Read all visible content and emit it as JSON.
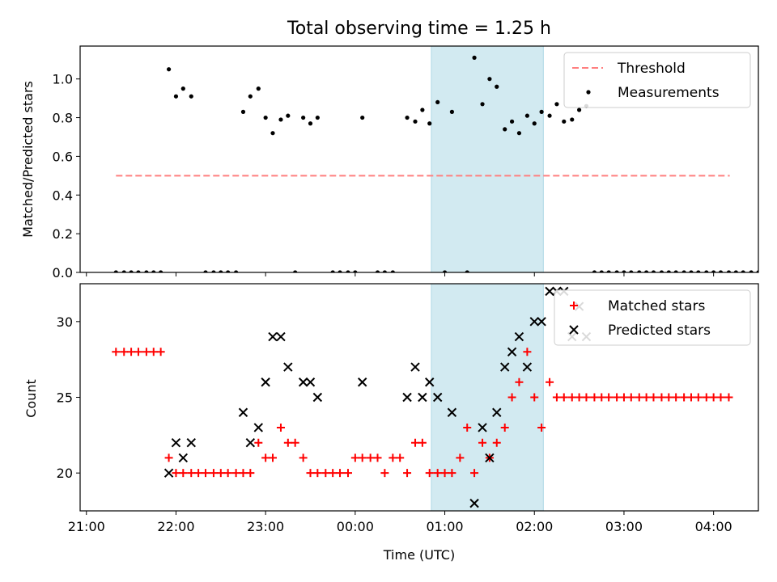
{
  "figure": {
    "title": "Total observing time = 1.25 h",
    "shade_color": "#add8e6"
  },
  "chart_data": [
    {
      "type": "scatter",
      "title": "Total observing time = 1.25 h",
      "xlabel": "",
      "ylabel": "Matched/Predicted stars",
      "xlim": [
        -0.07,
        7.5
      ],
      "ylim": [
        0,
        1.17
      ],
      "yticks": [
        0.0,
        0.2,
        0.4,
        0.6,
        0.8,
        1.0
      ],
      "ytick_labels": [
        "0.0",
        "0.2",
        "0.4",
        "0.6",
        "0.8",
        "1.0"
      ],
      "shaded_x": [
        3.85,
        5.1
      ],
      "legend": "upper right",
      "series": [
        {
          "name": "Threshold",
          "kind": "dashed-line",
          "color": "#ff7f7f",
          "x": [
            0.33,
            7.18
          ],
          "y": [
            0.5,
            0.5
          ]
        },
        {
          "name": "Measurements",
          "kind": "dots",
          "color": "#000000",
          "points": [
            [
              0.33,
              0
            ],
            [
              0.42,
              0
            ],
            [
              0.5,
              0
            ],
            [
              0.58,
              0
            ],
            [
              0.67,
              0
            ],
            [
              0.75,
              0
            ],
            [
              0.83,
              0
            ],
            [
              0.92,
              1.05
            ],
            [
              1.0,
              0.91
            ],
            [
              1.08,
              0.95
            ],
            [
              1.17,
              0.91
            ],
            [
              1.33,
              0
            ],
            [
              1.42,
              0
            ],
            [
              1.5,
              0
            ],
            [
              1.58,
              0
            ],
            [
              1.67,
              0
            ],
            [
              1.75,
              0.83
            ],
            [
              1.83,
              0.91
            ],
            [
              1.92,
              0.95
            ],
            [
              2.0,
              0.8
            ],
            [
              2.08,
              0.72
            ],
            [
              2.17,
              0.79
            ],
            [
              2.25,
              0.81
            ],
            [
              2.33,
              0
            ],
            [
              2.42,
              0.8
            ],
            [
              2.5,
              0.77
            ],
            [
              2.58,
              0.8
            ],
            [
              2.75,
              0
            ],
            [
              2.83,
              0
            ],
            [
              2.92,
              0
            ],
            [
              3.0,
              0
            ],
            [
              3.08,
              0.8
            ],
            [
              3.25,
              0
            ],
            [
              3.33,
              0
            ],
            [
              3.42,
              0
            ],
            [
              3.58,
              0.8
            ],
            [
              3.67,
              0.78
            ],
            [
              3.75,
              0.84
            ],
            [
              3.83,
              0.77
            ],
            [
              3.92,
              0.88
            ],
            [
              4.0,
              0
            ],
            [
              4.08,
              0.83
            ],
            [
              4.25,
              0
            ],
            [
              4.33,
              1.11
            ],
            [
              4.42,
              0.87
            ],
            [
              4.5,
              1.0
            ],
            [
              4.58,
              0.96
            ],
            [
              4.67,
              0.74
            ],
            [
              4.75,
              0.78
            ],
            [
              4.83,
              0.72
            ],
            [
              4.92,
              0.81
            ],
            [
              5.0,
              0.77
            ],
            [
              5.08,
              0.83
            ],
            [
              5.17,
              0.81
            ],
            [
              5.25,
              0.87
            ],
            [
              5.33,
              0.78
            ],
            [
              5.42,
              0.79
            ],
            [
              5.5,
              0.84
            ],
            [
              5.58,
              0.86
            ],
            [
              5.67,
              0
            ],
            [
              5.75,
              0
            ],
            [
              5.83,
              0
            ],
            [
              5.92,
              0
            ],
            [
              6.0,
              0
            ],
            [
              6.08,
              0
            ],
            [
              6.17,
              0
            ],
            [
              6.25,
              0
            ],
            [
              6.33,
              0
            ],
            [
              6.42,
              0
            ],
            [
              6.5,
              0
            ],
            [
              6.58,
              0
            ],
            [
              6.67,
              0
            ],
            [
              6.75,
              0
            ],
            [
              6.83,
              0
            ],
            [
              6.92,
              0
            ],
            [
              7.0,
              0
            ],
            [
              7.08,
              0
            ],
            [
              7.17,
              0
            ],
            [
              7.25,
              0
            ],
            [
              7.33,
              0
            ],
            [
              7.42,
              0
            ],
            [
              7.5,
              0
            ],
            [
              7.58,
              0
            ],
            [
              7.67,
              0
            ]
          ]
        }
      ]
    },
    {
      "type": "scatter",
      "xlabel": "Time (UTC)",
      "ylabel": "Count",
      "xlim": [
        -0.07,
        7.5
      ],
      "ylim": [
        17.5,
        32.5
      ],
      "yticks": [
        20,
        25,
        30
      ],
      "ytick_labels": [
        "20",
        "25",
        "30"
      ],
      "xticks": [
        0,
        1,
        2,
        3,
        4,
        5,
        6,
        7
      ],
      "xtick_labels": [
        "21:00",
        "22:00",
        "23:00",
        "00:00",
        "01:00",
        "02:00",
        "03:00",
        "04:00"
      ],
      "shaded_x": [
        3.85,
        5.1
      ],
      "legend": "upper right",
      "series": [
        {
          "name": "Matched stars",
          "marker": "plus",
          "color": "#ff0000",
          "points": [
            [
              0.33,
              28
            ],
            [
              0.42,
              28
            ],
            [
              0.5,
              28
            ],
            [
              0.58,
              28
            ],
            [
              0.67,
              28
            ],
            [
              0.75,
              28
            ],
            [
              0.83,
              28
            ],
            [
              0.92,
              21
            ],
            [
              1.0,
              20
            ],
            [
              1.08,
              20
            ],
            [
              1.17,
              20
            ],
            [
              1.25,
              20
            ],
            [
              1.33,
              20
            ],
            [
              1.42,
              20
            ],
            [
              1.5,
              20
            ],
            [
              1.58,
              20
            ],
            [
              1.67,
              20
            ],
            [
              1.75,
              20
            ],
            [
              1.83,
              20
            ],
            [
              1.92,
              22
            ],
            [
              2.0,
              21
            ],
            [
              2.08,
              21
            ],
            [
              2.17,
              23
            ],
            [
              2.25,
              22
            ],
            [
              2.33,
              22
            ],
            [
              2.42,
              21
            ],
            [
              2.5,
              20
            ],
            [
              2.58,
              20
            ],
            [
              2.67,
              20
            ],
            [
              2.75,
              20
            ],
            [
              2.83,
              20
            ],
            [
              2.92,
              20
            ],
            [
              3.0,
              21
            ],
            [
              3.08,
              21
            ],
            [
              3.17,
              21
            ],
            [
              3.25,
              21
            ],
            [
              3.33,
              20
            ],
            [
              3.42,
              21
            ],
            [
              3.5,
              21
            ],
            [
              3.58,
              20
            ],
            [
              3.67,
              22
            ],
            [
              3.75,
              22
            ],
            [
              3.83,
              20
            ],
            [
              3.92,
              20
            ],
            [
              4.0,
              20
            ],
            [
              4.08,
              20
            ],
            [
              4.17,
              21
            ],
            [
              4.25,
              23
            ],
            [
              4.33,
              20
            ],
            [
              4.42,
              22
            ],
            [
              4.5,
              21
            ],
            [
              4.58,
              22
            ],
            [
              4.67,
              23
            ],
            [
              4.75,
              25
            ],
            [
              4.83,
              26
            ],
            [
              4.92,
              28
            ],
            [
              5.0,
              25
            ],
            [
              5.08,
              23
            ],
            [
              5.17,
              26
            ],
            [
              5.25,
              25
            ],
            [
              5.33,
              25
            ],
            [
              5.42,
              25
            ],
            [
              5.5,
              25
            ],
            [
              5.58,
              25
            ],
            [
              5.67,
              25
            ],
            [
              5.75,
              25
            ],
            [
              5.83,
              25
            ],
            [
              5.92,
              25
            ],
            [
              6.0,
              25
            ],
            [
              6.08,
              25
            ],
            [
              6.17,
              25
            ],
            [
              6.25,
              25
            ],
            [
              6.33,
              25
            ],
            [
              6.42,
              25
            ],
            [
              6.5,
              25
            ],
            [
              6.58,
              25
            ],
            [
              6.67,
              25
            ],
            [
              6.75,
              25
            ],
            [
              6.83,
              25
            ],
            [
              6.92,
              25
            ],
            [
              7.0,
              25
            ],
            [
              7.08,
              25
            ],
            [
              7.17,
              25
            ]
          ]
        },
        {
          "name": "Predicted stars",
          "marker": "x",
          "color": "#000000",
          "points": [
            [
              0.92,
              20
            ],
            [
              1.0,
              22
            ],
            [
              1.08,
              21
            ],
            [
              1.17,
              22
            ],
            [
              1.75,
              24
            ],
            [
              1.83,
              22
            ],
            [
              1.92,
              23
            ],
            [
              2.0,
              26
            ],
            [
              2.08,
              29
            ],
            [
              2.17,
              29
            ],
            [
              2.25,
              27
            ],
            [
              2.42,
              26
            ],
            [
              2.5,
              26
            ],
            [
              2.58,
              25
            ],
            [
              3.08,
              26
            ],
            [
              3.58,
              25
            ],
            [
              3.67,
              27
            ],
            [
              3.75,
              25
            ],
            [
              3.83,
              26
            ],
            [
              3.92,
              25
            ],
            [
              4.08,
              24
            ],
            [
              4.33,
              18
            ],
            [
              4.42,
              23
            ],
            [
              4.5,
              21
            ],
            [
              4.58,
              24
            ],
            [
              4.67,
              27
            ],
            [
              4.75,
              28
            ],
            [
              4.83,
              29
            ],
            [
              4.92,
              27
            ],
            [
              5.0,
              30
            ],
            [
              5.08,
              30
            ],
            [
              5.17,
              32
            ],
            [
              5.25,
              32
            ],
            [
              5.33,
              32
            ],
            [
              5.42,
              29
            ],
            [
              5.5,
              31
            ],
            [
              5.58,
              29
            ]
          ]
        }
      ]
    }
  ]
}
